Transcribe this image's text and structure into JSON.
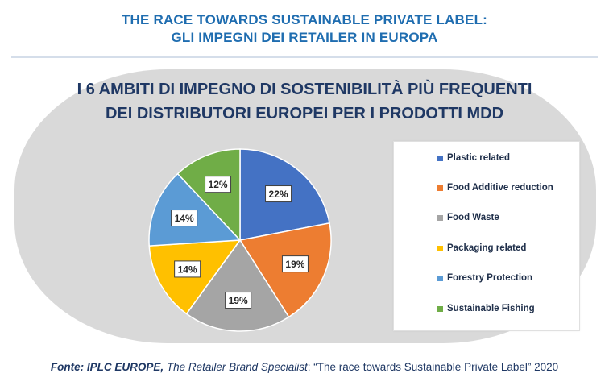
{
  "header": {
    "line1": "THE RACE TOWARDS SUSTAINABLE PRIVATE LABEL:",
    "line2": "GLI IMPEGNI DEI RETAILER IN EUROPA"
  },
  "chart_data": {
    "type": "pie",
    "title_line1": "I 6 AMBITI DI IMPEGNO DI SOSTENIBILITÀ PIÙ FREQUENTI",
    "title_line2": "DEI DISTRIBUTORI EUROPEI PER I PRODOTTI MDD",
    "categories": [
      "Plastic related",
      "Food Additive reduction",
      "Food Waste",
      "Packaging related",
      "Forestry Protection",
      "Sustainable Fishing"
    ],
    "values": [
      22,
      19,
      19,
      14,
      14,
      12
    ],
    "labels": [
      "22%",
      "19%",
      "19%",
      "14%",
      "14%",
      "12%"
    ],
    "colors": [
      "#4472c4",
      "#ed7d31",
      "#a5a5a5",
      "#ffc000",
      "#5b9bd5",
      "#70ad47"
    ],
    "legend_position": "right"
  },
  "source": {
    "prefix": "Fonte: IPLC EUROPE,",
    "company_desc": "The Retailer Brand Specialist",
    "rest": ": “The race towards Sustainable Private Label” 2020"
  }
}
